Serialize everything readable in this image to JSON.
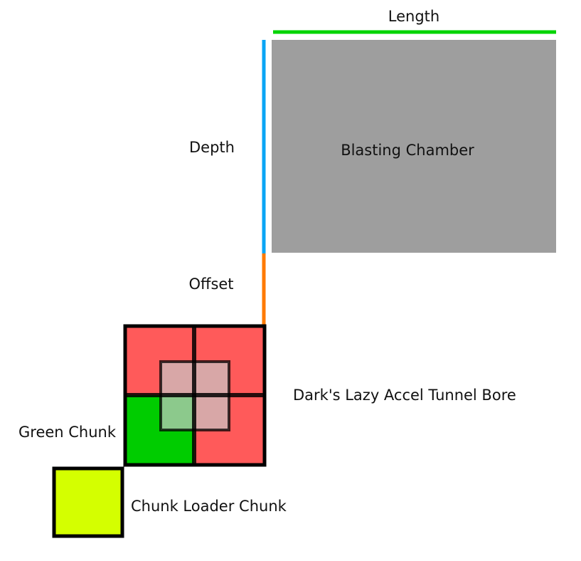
{
  "labels": {
    "length": "Length",
    "depth": "Depth",
    "offset": "Offset",
    "blasting_chamber": "Blasting Chamber",
    "tunnel_bore": "Dark's Lazy Accel Tunnel Bore",
    "green_chunk": "Green Chunk",
    "chunk_loader_chunk": "Chunk Loader Chunk"
  },
  "colors": {
    "length_line": "#00d400",
    "depth_line": "#0aa5f5",
    "offset_line": "#ff7a00",
    "blasting_chamber_fill": "#9e9e9e",
    "bore_chunk_fill": "#ff5a5a",
    "green_chunk_fill": "#00cc00",
    "chunk_loader_fill": "#d4ff00",
    "overlay_fill": "#c8c8c8",
    "outline": "#000000"
  }
}
